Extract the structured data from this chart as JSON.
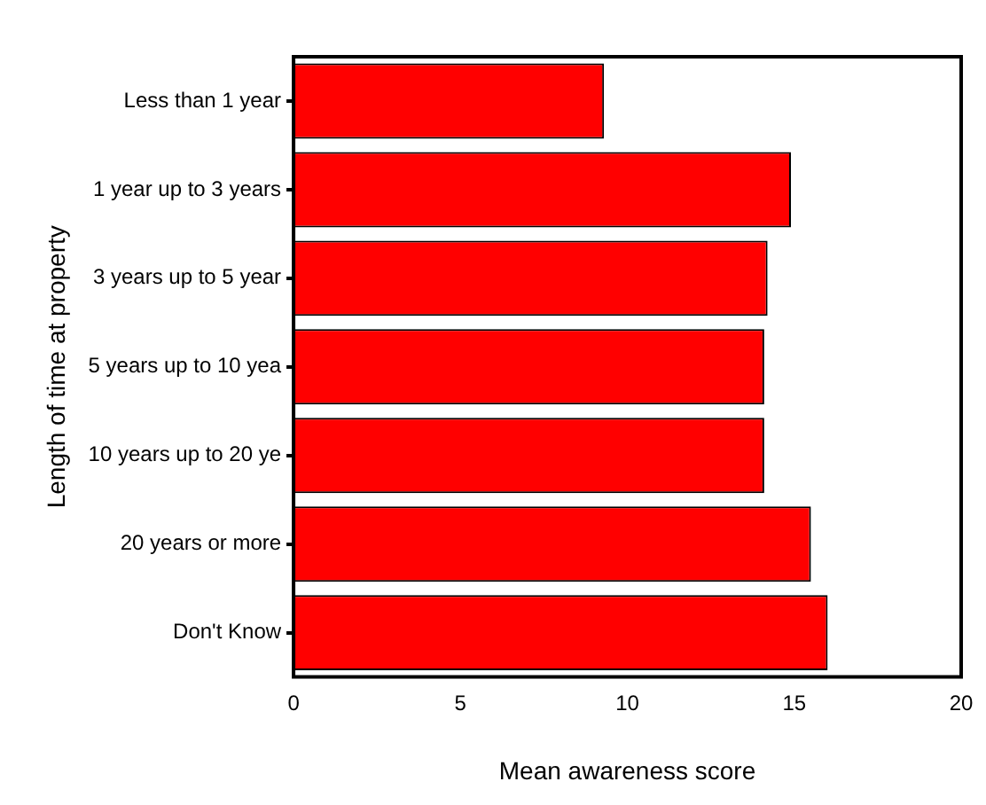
{
  "chart_data": {
    "type": "bar",
    "orientation": "horizontal",
    "xlabel": "Mean awareness score",
    "ylabel": "Length of time at property",
    "categories": [
      "Less than 1 year",
      "1 year up to 3 years",
      "3 years up to 5 year",
      "5 years up to 10 yea",
      "10 years up to 20 ye",
      "20 years or more",
      "Don't Know"
    ],
    "values": [
      9.3,
      14.9,
      14.2,
      14.1,
      14.1,
      15.5,
      16.0
    ],
    "color": "#ff0000",
    "xlim": [
      0,
      20
    ],
    "xticks": [
      0,
      5,
      10,
      15,
      20
    ],
    "grid": false,
    "legend": false
  }
}
